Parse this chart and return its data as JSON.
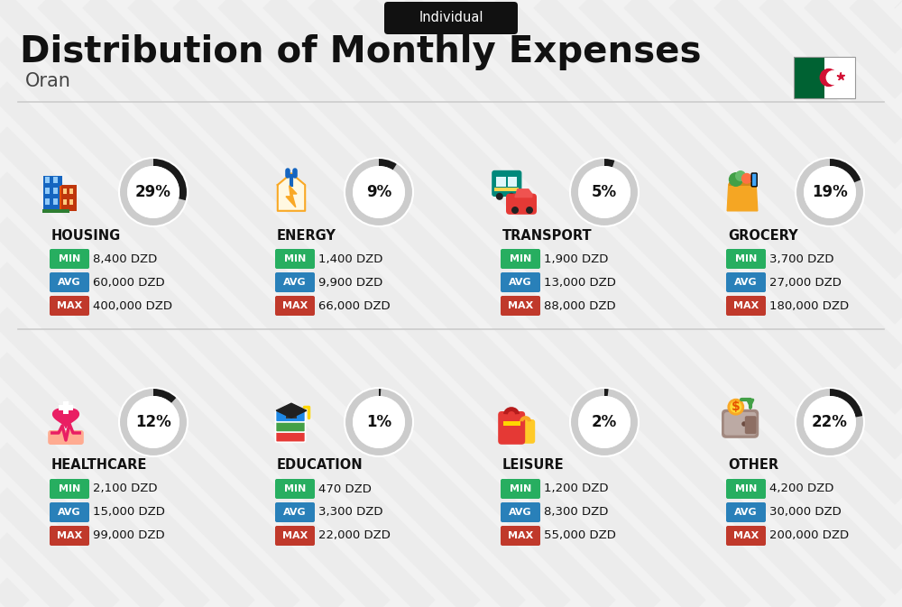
{
  "title": "Distribution of Monthly Expenses",
  "subtitle": "Individual",
  "city": "Oran",
  "background_color": "#f2f2f2",
  "categories": [
    {
      "name": "HOUSING",
      "pct": 29,
      "min_val": "8,400 DZD",
      "avg_val": "60,000 DZD",
      "max_val": "400,000 DZD",
      "icon": "housing",
      "row": 0,
      "col": 0
    },
    {
      "name": "ENERGY",
      "pct": 9,
      "min_val": "1,400 DZD",
      "avg_val": "9,900 DZD",
      "max_val": "66,000 DZD",
      "icon": "energy",
      "row": 0,
      "col": 1
    },
    {
      "name": "TRANSPORT",
      "pct": 5,
      "min_val": "1,900 DZD",
      "avg_val": "13,000 DZD",
      "max_val": "88,000 DZD",
      "icon": "transport",
      "row": 0,
      "col": 2
    },
    {
      "name": "GROCERY",
      "pct": 19,
      "min_val": "3,700 DZD",
      "avg_val": "27,000 DZD",
      "max_val": "180,000 DZD",
      "icon": "grocery",
      "row": 0,
      "col": 3
    },
    {
      "name": "HEALTHCARE",
      "pct": 12,
      "min_val": "2,100 DZD",
      "avg_val": "15,000 DZD",
      "max_val": "99,000 DZD",
      "icon": "healthcare",
      "row": 1,
      "col": 0
    },
    {
      "name": "EDUCATION",
      "pct": 1,
      "min_val": "470 DZD",
      "avg_val": "3,300 DZD",
      "max_val": "22,000 DZD",
      "icon": "education",
      "row": 1,
      "col": 1
    },
    {
      "name": "LEISURE",
      "pct": 2,
      "min_val": "1,200 DZD",
      "avg_val": "8,300 DZD",
      "max_val": "55,000 DZD",
      "icon": "leisure",
      "row": 1,
      "col": 2
    },
    {
      "name": "OTHER",
      "pct": 22,
      "min_val": "4,200 DZD",
      "avg_val": "30,000 DZD",
      "max_val": "200,000 DZD",
      "icon": "other",
      "row": 1,
      "col": 3
    }
  ],
  "min_color": "#27ae60",
  "avg_color": "#2980b9",
  "max_color": "#c0392b",
  "arc_color_dark": "#1a1a1a",
  "arc_color_light": "#cccccc",
  "flag_green": "#006233",
  "flag_red": "#d21034",
  "stripe_color": "#e8e8e8",
  "header_bg": "#111111",
  "title_color": "#111111",
  "city_color": "#444444",
  "cat_color": "#111111",
  "val_color": "#111111",
  "pct_color": "#111111"
}
